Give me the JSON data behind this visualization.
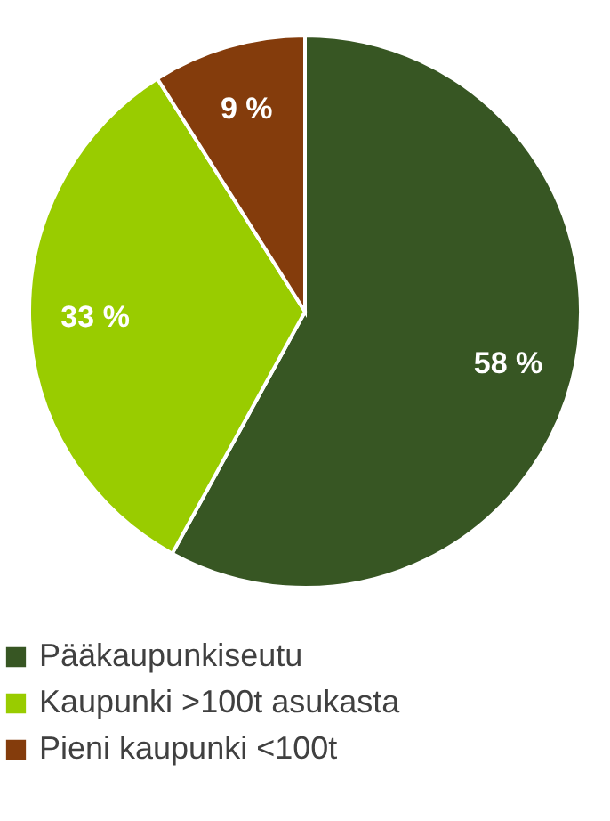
{
  "chart_data": {
    "type": "pie",
    "categories": [
      "Pääkaupunkiseutu",
      "Kaupunki >100t asukasta",
      "Pieni kaupunki <100t"
    ],
    "values": [
      58,
      33,
      9
    ],
    "colors": [
      "#375623",
      "#99cc00",
      "#843c0c"
    ],
    "value_labels": [
      "58 %",
      "33 %",
      "9 %"
    ],
    "legend": "bottom"
  }
}
